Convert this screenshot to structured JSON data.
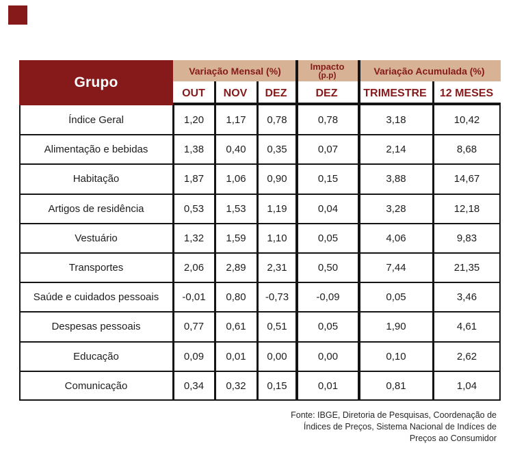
{
  "colors": {
    "maroon": "#861A1A",
    "tan": "#D7B294",
    "grid_line": "#141414",
    "body_text": "#1d1d1d"
  },
  "chart_data": {
    "type": "table",
    "group_col_header": "Grupo",
    "column_groups": [
      {
        "label": "Variação Mensal (%)",
        "span": 3
      },
      {
        "label": "Impacto",
        "sublabel": "(p.p)",
        "span": 1
      },
      {
        "label": "Variação Acumulada (%)",
        "span": 2
      }
    ],
    "sub_columns": [
      "OUT",
      "NOV",
      "DEZ",
      "DEZ",
      "TRIMESTRE",
      "12 MESES"
    ],
    "rows": [
      [
        "Índice Geral",
        "1,20",
        "1,17",
        "0,78",
        "0,78",
        "3,18",
        "10,42"
      ],
      [
        "Alimentação e bebidas",
        "1,38",
        "0,40",
        "0,35",
        "0,07",
        "2,14",
        "8,68"
      ],
      [
        "Habitação",
        "1,87",
        "1,06",
        "0,90",
        "0,15",
        "3,88",
        "14,67"
      ],
      [
        "Artigos de residência",
        "0,53",
        "1,53",
        "1,19",
        "0,04",
        "3,28",
        "12,18"
      ],
      [
        "Vestuário",
        "1,32",
        "1,59",
        "1,10",
        "0,05",
        "4,06",
        "9,83"
      ],
      [
        "Transportes",
        "2,06",
        "2,89",
        "2,31",
        "0,50",
        "7,44",
        "21,35"
      ],
      [
        "Saúde e cuidados pessoais",
        "-0,01",
        "0,80",
        "-0,73",
        "-0,09",
        "0,05",
        "3,46"
      ],
      [
        "Despesas pessoais",
        "0,77",
        "0,61",
        "0,51",
        "0,05",
        "1,90",
        "4,61"
      ],
      [
        "Educação",
        "0,09",
        "0,01",
        "0,00",
        "0,00",
        "0,10",
        "2,62"
      ],
      [
        "Comunicação",
        "0,34",
        "0,32",
        "0,15",
        "0,01",
        "0,81",
        "1,04"
      ]
    ]
  },
  "footer": {
    "lines": [
      "Fonte: IBGE, Diretoria de Pesquisas, Coordenação de",
      "Índices de Preços, Sistema Nacional de Indíces de",
      "Preços ao Consumidor"
    ]
  }
}
